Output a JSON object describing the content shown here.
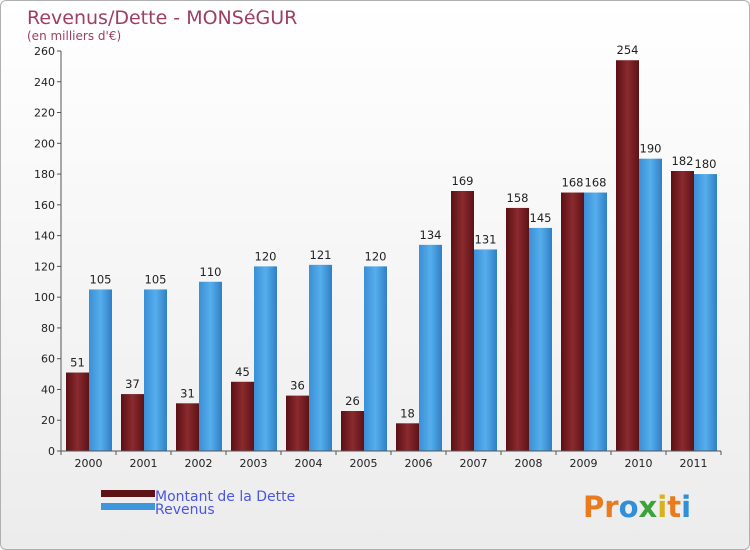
{
  "chart_data": {
    "type": "bar",
    "title": "Revenus/Dette - MONSéGUR",
    "subtitle": "(en milliers d'€)",
    "categories": [
      "2000",
      "2001",
      "2002",
      "2003",
      "2004",
      "2005",
      "2006",
      "2007",
      "2008",
      "2009",
      "2010",
      "2011"
    ],
    "series": [
      {
        "name": "Montant de la Dette",
        "color": "#7a1e22",
        "values": [
          51,
          37,
          31,
          45,
          36,
          26,
          18,
          169,
          158,
          168,
          254,
          182
        ]
      },
      {
        "name": "Revenus",
        "color": "#3e96dc",
        "values": [
          105,
          105,
          110,
          120,
          121,
          120,
          134,
          131,
          145,
          168,
          190,
          180
        ]
      }
    ],
    "ylim": [
      0,
      260
    ],
    "yticks": [
      0,
      20,
      40,
      60,
      80,
      100,
      120,
      140,
      160,
      180,
      200,
      220,
      240,
      260
    ],
    "grid": false,
    "legend_position": "bottom-left"
  },
  "branding": {
    "logo_letters": [
      "P",
      "r",
      "o",
      "x",
      "i",
      "t",
      "i"
    ],
    "logo_colors": [
      "#e87b1e",
      "#e87b1e",
      "#2f8fd8",
      "#3aa43a",
      "#d6b21c",
      "#e87b1e",
      "#2f8fd8"
    ]
  }
}
